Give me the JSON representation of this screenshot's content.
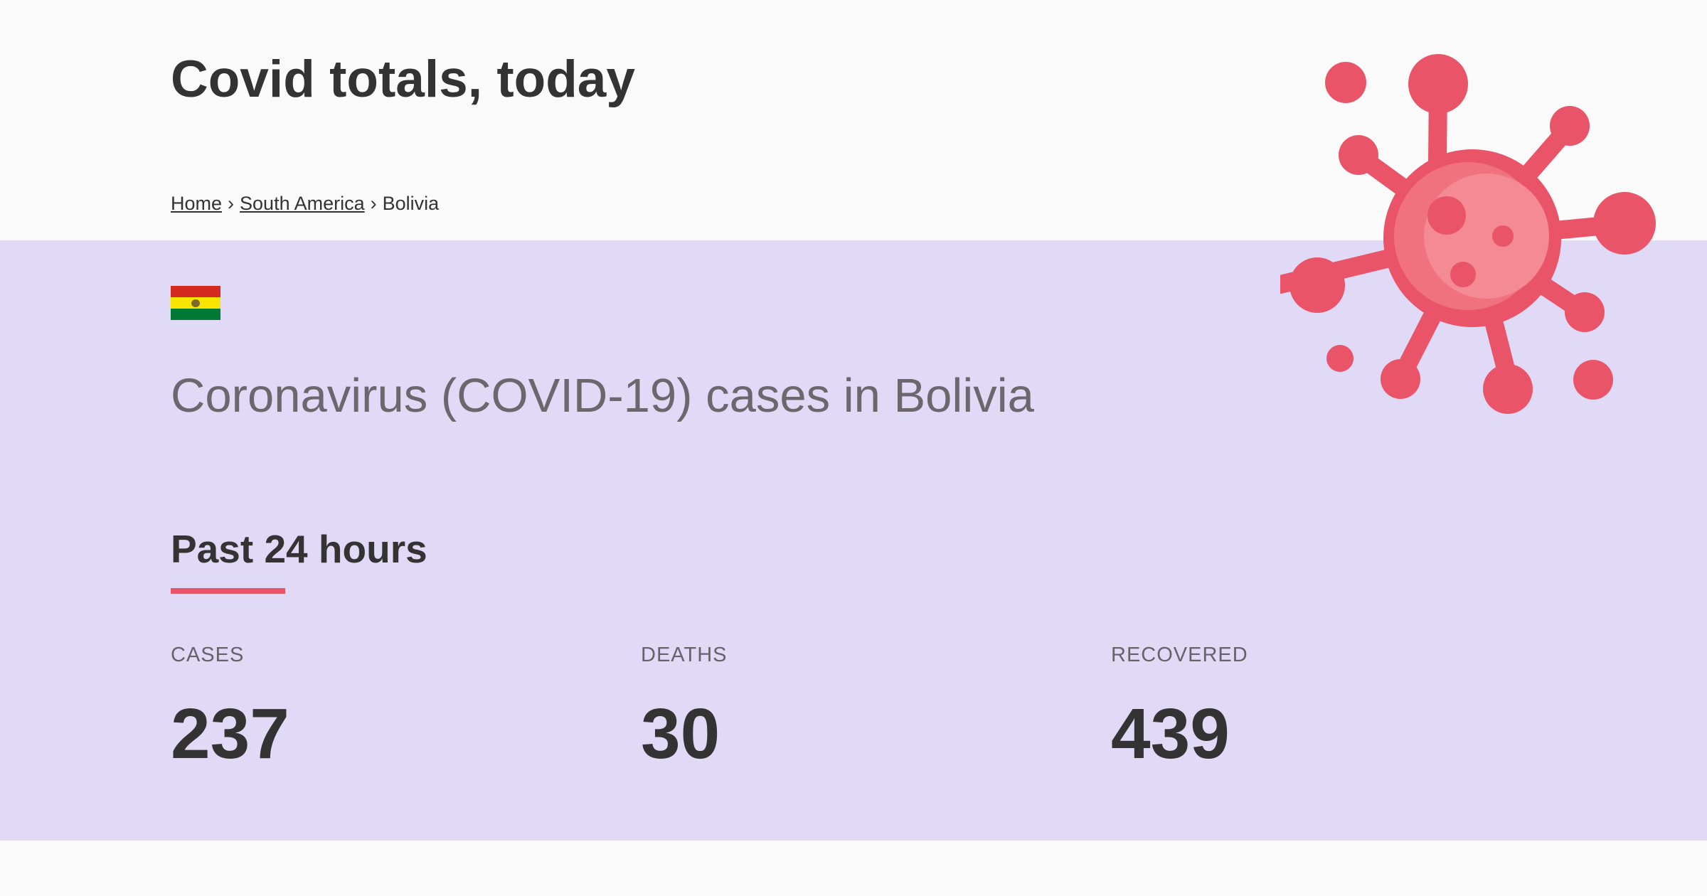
{
  "header": {
    "site_title": "Covid totals, today"
  },
  "breadcrumb": {
    "home": "Home",
    "region": "South America",
    "current": "Bolivia",
    "separator": "›"
  },
  "country": {
    "flag_colors": [
      "#d52b1e",
      "#f9e300",
      "#007934"
    ],
    "heading": "Coronavirus (COVID-19) cases in Bolivia"
  },
  "section": {
    "title": "Past 24 hours",
    "accent_color": "#ea5468"
  },
  "stats": [
    {
      "label": "CASES",
      "value": "237"
    },
    {
      "label": "DEATHS",
      "value": "30"
    },
    {
      "label": "RECOVERED",
      "value": "439"
    }
  ],
  "illustration": {
    "icon": "virus-icon",
    "color": "#ea5468"
  }
}
